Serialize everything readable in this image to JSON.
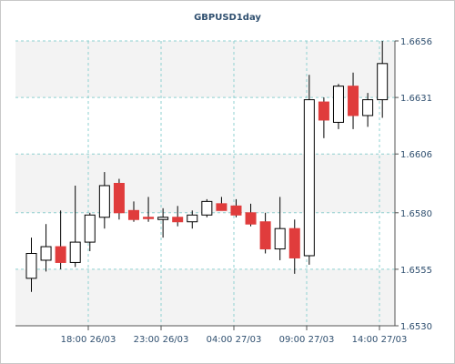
{
  "chart_data": {
    "type": "candlestick",
    "title": "GBPUSD1day",
    "y_axis": {
      "position": "right",
      "range": [
        1.653,
        1.6656
      ],
      "ticks": [
        1.6656,
        1.6631,
        1.6606,
        1.658,
        1.6555,
        1.653
      ]
    },
    "x_axis": {
      "ticks": [
        "18:00 26/03",
        "23:00 26/03",
        "04:00 27/03",
        "09:00 27/03",
        "14:00 27/03"
      ]
    },
    "grid": true,
    "colors": {
      "up_body": "#ffffff",
      "down_body": "#e03c3c",
      "outline": "#000000",
      "grid": "#8fd0d0",
      "band": "#f3f3f3",
      "text": "#2f4f6f"
    },
    "candles": [
      {
        "open": 1.6551,
        "high": 1.6569,
        "low": 1.6545,
        "close": 1.6562,
        "direction": "up"
      },
      {
        "open": 1.6559,
        "high": 1.6575,
        "low": 1.6554,
        "close": 1.6565,
        "direction": "up"
      },
      {
        "open": 1.6565,
        "high": 1.6581,
        "low": 1.6555,
        "close": 1.6558,
        "direction": "down"
      },
      {
        "open": 1.6558,
        "high": 1.6592,
        "low": 1.6556,
        "close": 1.6567,
        "direction": "up"
      },
      {
        "open": 1.6567,
        "high": 1.658,
        "low": 1.6563,
        "close": 1.6579,
        "direction": "up"
      },
      {
        "open": 1.6578,
        "high": 1.6598,
        "low": 1.6573,
        "close": 1.6592,
        "direction": "up"
      },
      {
        "open": 1.6593,
        "high": 1.6595,
        "low": 1.6577,
        "close": 1.658,
        "direction": "down"
      },
      {
        "open": 1.6581,
        "high": 1.6585,
        "low": 1.6576,
        "close": 1.6577,
        "direction": "down"
      },
      {
        "open": 1.6578,
        "high": 1.6587,
        "low": 1.6576,
        "close": 1.6578,
        "direction": "down"
      },
      {
        "open": 1.6577,
        "high": 1.6582,
        "low": 1.6569,
        "close": 1.6578,
        "direction": "up"
      },
      {
        "open": 1.6578,
        "high": 1.6583,
        "low": 1.6574,
        "close": 1.6576,
        "direction": "down"
      },
      {
        "open": 1.6576,
        "high": 1.6581,
        "low": 1.6573,
        "close": 1.6579,
        "direction": "up"
      },
      {
        "open": 1.6579,
        "high": 1.6586,
        "low": 1.6578,
        "close": 1.6585,
        "direction": "up"
      },
      {
        "open": 1.6584,
        "high": 1.6587,
        "low": 1.6581,
        "close": 1.6581,
        "direction": "down"
      },
      {
        "open": 1.6583,
        "high": 1.6586,
        "low": 1.6578,
        "close": 1.6579,
        "direction": "down"
      },
      {
        "open": 1.658,
        "high": 1.6584,
        "low": 1.6574,
        "close": 1.6575,
        "direction": "down"
      },
      {
        "open": 1.6576,
        "high": 1.658,
        "low": 1.6562,
        "close": 1.6564,
        "direction": "down"
      },
      {
        "open": 1.6564,
        "high": 1.6587,
        "low": 1.6559,
        "close": 1.6573,
        "direction": "up"
      },
      {
        "open": 1.6573,
        "high": 1.6577,
        "low": 1.6553,
        "close": 1.656,
        "direction": "down"
      },
      {
        "open": 1.6561,
        "high": 1.6641,
        "low": 1.6557,
        "close": 1.663,
        "direction": "up"
      },
      {
        "open": 1.6629,
        "high": 1.6631,
        "low": 1.6613,
        "close": 1.6621,
        "direction": "down"
      },
      {
        "open": 1.662,
        "high": 1.6637,
        "low": 1.6617,
        "close": 1.6636,
        "direction": "up"
      },
      {
        "open": 1.6636,
        "high": 1.6642,
        "low": 1.6617,
        "close": 1.6623,
        "direction": "down"
      },
      {
        "open": 1.6623,
        "high": 1.6633,
        "low": 1.6618,
        "close": 1.663,
        "direction": "up"
      },
      {
        "open": 1.663,
        "high": 1.6656,
        "low": 1.6622,
        "close": 1.6646,
        "direction": "up"
      }
    ]
  }
}
